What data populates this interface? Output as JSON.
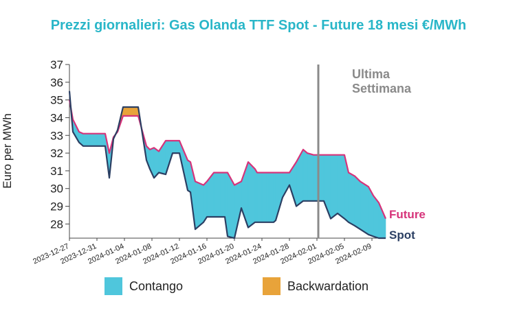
{
  "chart_data": {
    "type": "area",
    "title": "Prezzi giornalieri: Gas Olanda TTF Spot - Future 18 mesi €/MWh",
    "ylabel": "Euro per MWh",
    "ylim": [
      27.2,
      37
    ],
    "yticks": [
      28,
      29,
      30,
      31,
      32,
      33,
      34,
      35,
      36,
      37
    ],
    "xticks": [
      "2023-12-27",
      "2023-12-31",
      "2024-01-04",
      "2024-01-08",
      "2024-01-12",
      "2024-01-16",
      "2024-01-20",
      "2024-01-24",
      "2024-01-28",
      "2024-02-01",
      "2024-02-05",
      "2024-02-09"
    ],
    "start_date": "2023-12-27",
    "vline": {
      "x": 36.2,
      "label_line1": "Ultima",
      "label_line2": "Settimana"
    },
    "series": [
      {
        "name": "Future",
        "color": "#d6337a",
        "x": [
          0,
          0.5,
          1.4,
          2,
          3,
          4,
          5,
          5.2,
          5.8,
          6.4,
          7,
          7.8,
          9,
          10,
          11.2,
          11.7,
          12.3,
          13,
          14,
          15,
          15.5,
          16,
          17.2,
          17.6,
          18.3,
          19.5,
          20,
          21,
          22,
          22.6,
          23,
          24,
          25,
          26,
          27,
          27.3,
          28,
          28.7,
          29,
          29.7,
          30,
          31,
          32,
          33,
          34,
          34.6,
          35.5,
          36.2,
          37,
          38,
          39,
          40,
          40.6,
          41.5,
          42.3,
          43.5,
          44.2,
          45,
          46
        ],
        "values": [
          35,
          33.9,
          33.2,
          33.1,
          33.1,
          33.1,
          33.1,
          33.1,
          32,
          32.9,
          33.2,
          34.1,
          34.1,
          34.1,
          32.4,
          32.2,
          32.3,
          32.1,
          32.7,
          32.7,
          32.7,
          32.7,
          31.6,
          31.5,
          30.4,
          30.2,
          30.4,
          30.9,
          30.9,
          30.9,
          30.9,
          30.2,
          30.4,
          31.5,
          31.1,
          30.9,
          30.9,
          30.9,
          30.9,
          30.9,
          30.9,
          30.9,
          30.9,
          31.5,
          32.2,
          32.0,
          31.9,
          31.9,
          31.9,
          31.9,
          31.9,
          31.9,
          30.9,
          30.7,
          30.4,
          30.1,
          29.6,
          29.2,
          28.3
        ]
      },
      {
        "name": "Spot",
        "color": "#2b3f63",
        "x": [
          0,
          0.5,
          1.4,
          2,
          3,
          4,
          5,
          5.2,
          5.8,
          6.4,
          7,
          7.8,
          9,
          10,
          11.2,
          11.7,
          12.3,
          13,
          14,
          15,
          15.5,
          16,
          17.2,
          17.6,
          18.3,
          19.5,
          20,
          21,
          22,
          22.6,
          23,
          24,
          25,
          26,
          27,
          27.3,
          28,
          28.7,
          29,
          29.7,
          30,
          31,
          32,
          33,
          34,
          34.6,
          35.5,
          36.2,
          37,
          38,
          39,
          40,
          40.6,
          41.5,
          42.3,
          43.5,
          44.2,
          45,
          46
        ],
        "values": [
          35.5,
          33.2,
          32.6,
          32.4,
          32.4,
          32.4,
          32.4,
          32.4,
          30.6,
          32.8,
          33.3,
          34.6,
          34.6,
          34.6,
          31.6,
          31.1,
          30.6,
          30.9,
          30.8,
          32.0,
          32.0,
          32.0,
          29.9,
          29.8,
          27.7,
          28.1,
          28.4,
          28.4,
          28.4,
          28.4,
          27.3,
          27.2,
          28.9,
          27.8,
          28.1,
          28.1,
          28.1,
          28.1,
          28.1,
          28.1,
          28.2,
          29.5,
          30.2,
          29.0,
          29.3,
          29.3,
          29.3,
          29.3,
          29.3,
          28.3,
          28.6,
          28.3,
          28.1,
          27.9,
          27.7,
          27.4,
          27.3,
          27.2,
          27.2
        ]
      }
    ],
    "legend": [
      {
        "label": "Contango",
        "color": "#4fc6dc"
      },
      {
        "label": "Backwardation",
        "color": "#e8a33a"
      }
    ]
  }
}
